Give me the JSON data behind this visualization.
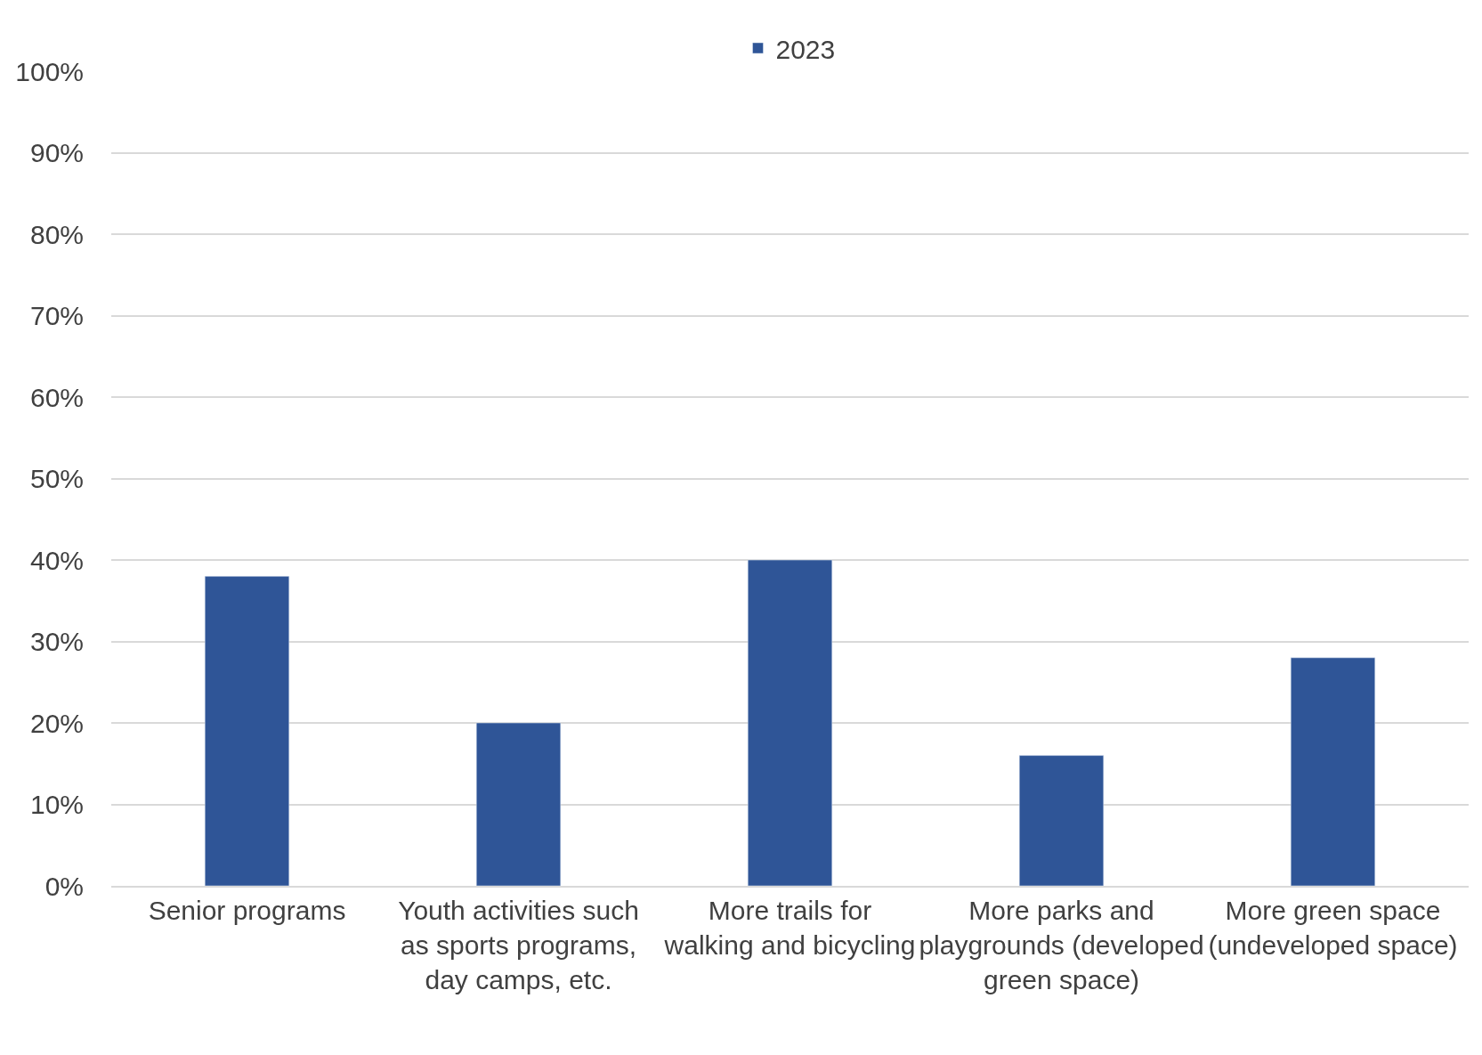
{
  "chart_data": {
    "type": "bar",
    "categories": [
      "Senior programs",
      "Youth activities such as sports programs, day camps, etc.",
      "More trails for walking and bicycling",
      "More parks and playgrounds (developed green space)",
      "More green space (undeveloped space)"
    ],
    "series": [
      {
        "name": "2023",
        "color": "#2f5597",
        "values": [
          38,
          20,
          40,
          16,
          28
        ]
      }
    ],
    "ylim": [
      0,
      100
    ],
    "yticks": [
      {
        "value": 0,
        "label": "0%"
      },
      {
        "value": 10,
        "label": "10%"
      },
      {
        "value": 20,
        "label": "20%"
      },
      {
        "value": 30,
        "label": "30%"
      },
      {
        "value": 40,
        "label": "40%"
      },
      {
        "value": 50,
        "label": "50%"
      },
      {
        "value": 60,
        "label": "60%"
      },
      {
        "value": 70,
        "label": "70%"
      },
      {
        "value": 80,
        "label": "80%"
      },
      {
        "value": 90,
        "label": "90%"
      },
      {
        "value": 100,
        "label": "100%"
      }
    ],
    "grid": "y",
    "legend": "top"
  }
}
